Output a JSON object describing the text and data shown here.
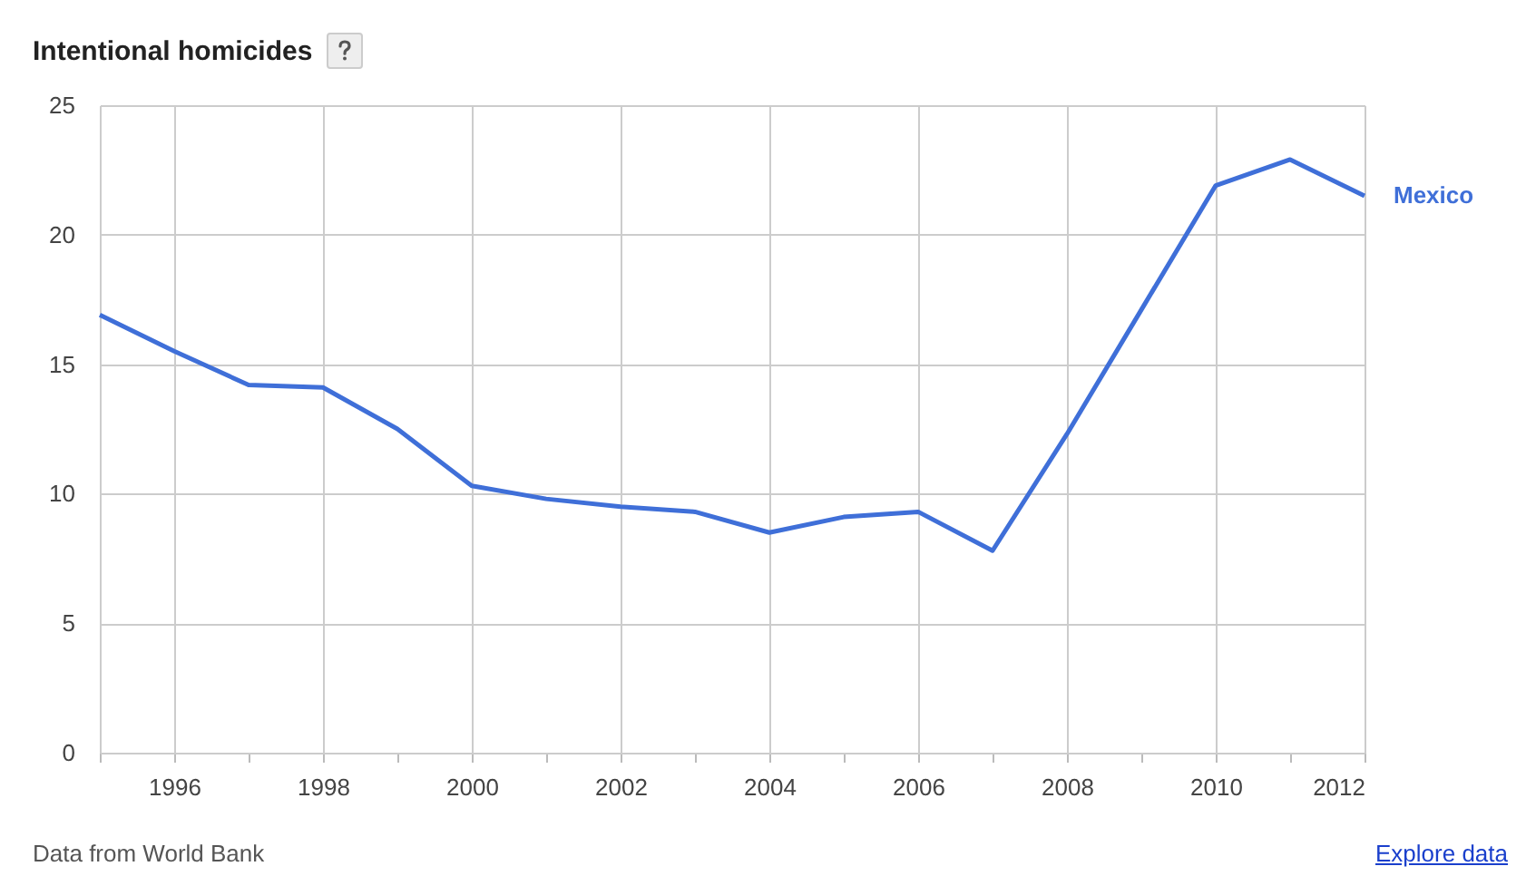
{
  "chart_data": {
    "type": "line",
    "title": "Intentional homicides",
    "x": [
      1995,
      1996,
      1997,
      1998,
      1999,
      2000,
      2001,
      2002,
      2003,
      2004,
      2005,
      2006,
      2007,
      2008,
      2009,
      2010,
      2011,
      2012
    ],
    "series": [
      {
        "name": "Mexico",
        "color": "#3f6fd8",
        "values": [
          16.9,
          15.5,
          14.2,
          14.1,
          12.5,
          10.3,
          9.8,
          9.5,
          9.3,
          8.5,
          9.1,
          9.3,
          7.8,
          12.3,
          17.1,
          21.9,
          22.9,
          21.5
        ]
      }
    ],
    "xlim": [
      1995,
      2012
    ],
    "xticks": [
      {
        "value": 1995,
        "label": null
      },
      1996,
      {
        "value": 1997,
        "label": null
      },
      1998,
      {
        "value": 1999,
        "label": null
      },
      2000,
      {
        "value": 2001,
        "label": null
      },
      2002,
      {
        "value": 2003,
        "label": null
      },
      2004,
      {
        "value": 2005,
        "label": null
      },
      2006,
      {
        "value": 2007,
        "label": null
      },
      2008,
      {
        "value": 2009,
        "label": null
      },
      2010,
      {
        "value": 2011,
        "label": null
      },
      2012
    ],
    "ylim": [
      0,
      25
    ],
    "yticks": [
      0,
      5,
      10,
      15,
      20,
      25
    ],
    "grid": true,
    "annotations": [
      "Data from World Bank",
      "Explore data"
    ]
  }
}
